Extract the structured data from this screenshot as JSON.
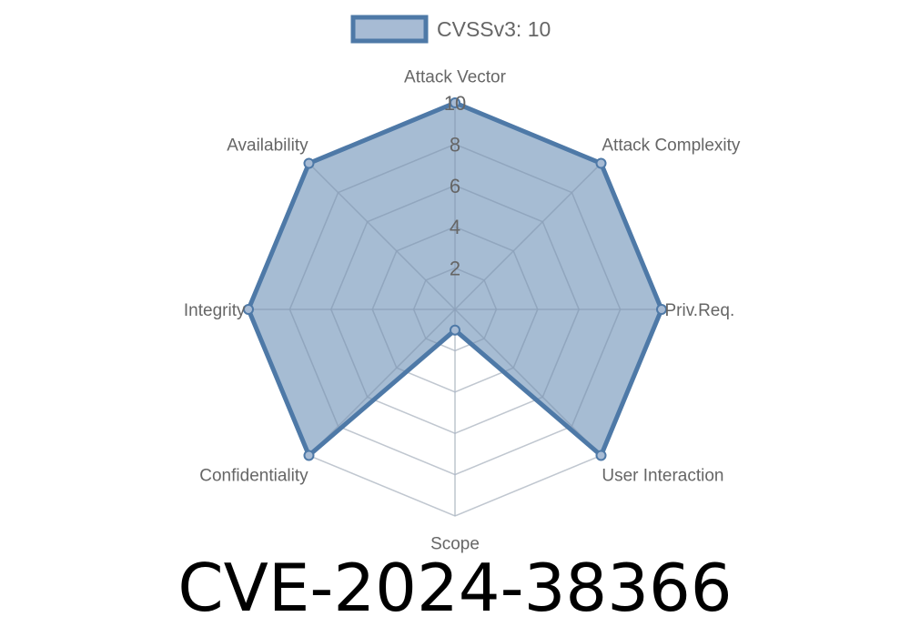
{
  "chart_data": {
    "type": "radar",
    "title": "CVE-2024-38366",
    "legend": {
      "label": "CVSSv3: 10",
      "placement": "top"
    },
    "axes": [
      "Attack Vector",
      "Attack Complexity",
      "Priv.Req.",
      "User Interaction",
      "Scope",
      "Confidentiality",
      "Integrity",
      "Availability"
    ],
    "series": [
      {
        "name": "CVSSv3: 10",
        "values": [
          10,
          10,
          10,
          10,
          1,
          10,
          10,
          10
        ]
      }
    ],
    "rlim": [
      0,
      10
    ],
    "ticks": [
      "2",
      "4",
      "6",
      "8",
      "10"
    ],
    "tick_values": [
      2,
      4,
      6,
      8,
      10
    ],
    "grid": true,
    "colors": {
      "stroke": "#4e79a7",
      "fill": "#a7bbd4",
      "grid": "#dddddd",
      "label": "#666666"
    }
  }
}
